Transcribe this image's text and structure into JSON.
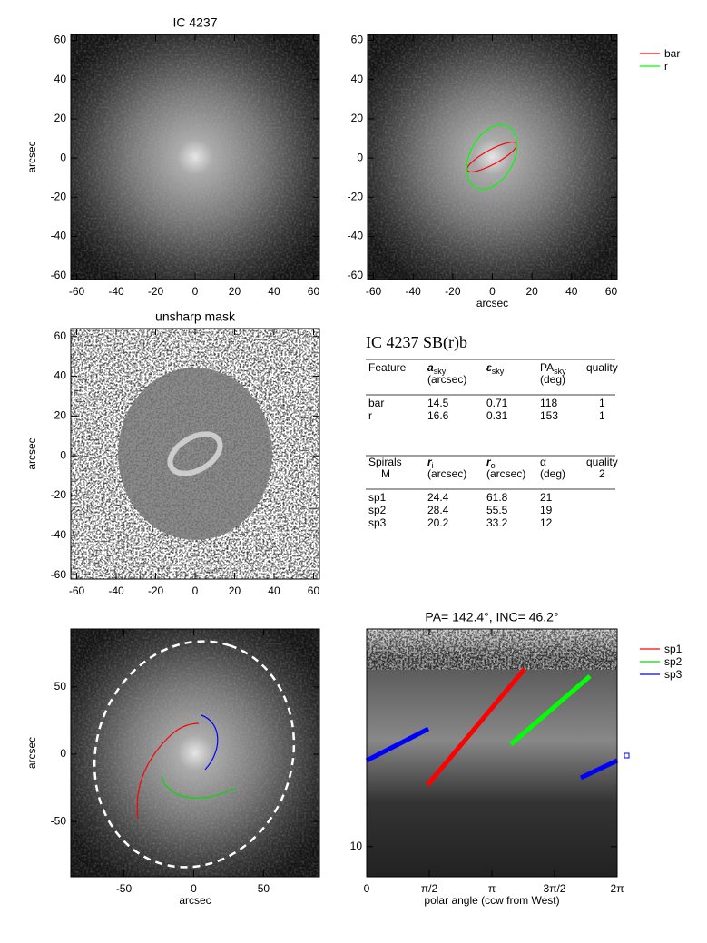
{
  "panels": [
    {
      "title": "IC 4237",
      "ylabel": "arcsec",
      "xlim": [
        -63,
        63
      ],
      "ylim": [
        -62,
        63
      ],
      "xticks": [
        -60,
        -40,
        -20,
        0,
        20,
        40,
        60
      ],
      "yticks": [
        -60,
        -40,
        -20,
        0,
        20,
        40,
        60
      ]
    },
    {
      "xlabel": "arcsec",
      "xlim": [
        -63,
        63
      ],
      "ylim": [
        -62,
        63
      ],
      "xticks": [
        -60,
        -40,
        -20,
        0,
        20,
        40,
        60
      ],
      "yticks": [
        -60,
        -40,
        -20,
        0,
        20,
        40,
        60
      ]
    },
    {
      "title": "unsharp mask",
      "ylabel": "arcsec",
      "xlim": [
        -63,
        63
      ],
      "ylim": [
        -62,
        64
      ],
      "xticks": [
        -60,
        -40,
        -20,
        0,
        20,
        40,
        60
      ],
      "yticks": [
        -60,
        -40,
        -20,
        0,
        20,
        40,
        60
      ]
    },
    {
      "xlabel": "arcsec",
      "ylabel": "arcsec",
      "xlim": [
        -88,
        90
      ],
      "ylim": [
        -91,
        93
      ],
      "xticks": [
        -50,
        0,
        50
      ],
      "yticks": [
        -50,
        0,
        50
      ]
    },
    {
      "title": "PA= 142.4°, INC= 46.2°",
      "xlabel": "polar angle (ccw from West)",
      "xlim": [
        0,
        6.2832
      ],
      "ylim": [
        8,
        50
      ],
      "log_y": true,
      "xticks": [
        0,
        {
          "value": 1.5708,
          "label": "π/2"
        },
        {
          "value": 3.1416,
          "label": "π"
        },
        {
          "value": 4.7124,
          "label": "3π/2"
        },
        {
          "value": 6.2832,
          "label": "2π"
        }
      ],
      "yticks": [
        10
      ]
    }
  ],
  "legends": [
    {
      "items": [
        {
          "name": "bar",
          "color": "#ff0000"
        },
        {
          "name": "r",
          "color": "#00ff00"
        }
      ]
    },
    {
      "items": [
        {
          "name": "sp1",
          "color": "#ff0000"
        },
        {
          "name": "sp2",
          "color": "#00dd00"
        },
        {
          "name": "sp3",
          "color": "#0000ff"
        }
      ]
    }
  ],
  "table": {
    "title": "IC 4237  SB(r)b",
    "features": {
      "header": [
        {
          "text": "Feature"
        },
        {
          "text": "a",
          "sub": "sky",
          "line2": "(arcsec)",
          "bold": true
        },
        {
          "text": "ε",
          "sub": "sky",
          "bold": true
        },
        {
          "text": "PA",
          "sub": "sky",
          "line2": "(deg)"
        },
        {
          "text": "quality"
        }
      ],
      "rows": [
        [
          "bar",
          "14.5",
          "0.71",
          "118",
          "1"
        ],
        [
          "r",
          "16.6",
          "0.31",
          "153",
          "1"
        ]
      ]
    },
    "spirals": {
      "header": [
        {
          "text": "Spirals",
          "line2": "M"
        },
        {
          "text": "r",
          "sub": "i",
          "line2": "(arcsec)",
          "bold": true
        },
        {
          "text": "r",
          "sub": "o",
          "line2": "(arcsec)",
          "bold": true
        },
        {
          "text": "α",
          "line2": "(deg)"
        },
        {
          "text": "quality",
          "line2": "2"
        }
      ],
      "rows": [
        [
          "sp1",
          "24.4",
          "61.8",
          "21"
        ],
        [
          "sp2",
          "28.4",
          "55.5",
          "19"
        ],
        [
          "sp3",
          "20.2",
          "33.2",
          "12"
        ]
      ]
    }
  }
}
